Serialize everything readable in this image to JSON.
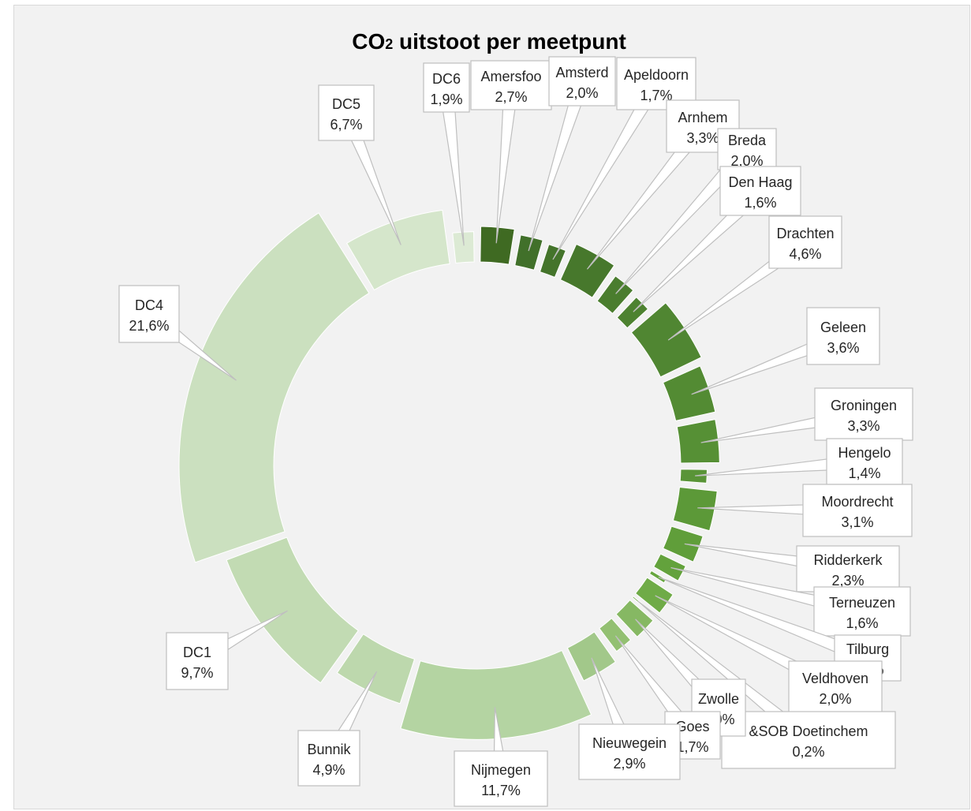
{
  "chart_data": {
    "type": "pie",
    "variant": "radial-column",
    "title": "CO₂ uitstoot per meetpunt",
    "title_main": "CO",
    "title_sub": "2",
    "title_rest": " uitstoot per meetpunt",
    "slices": [
      {
        "label": "Amersfoort",
        "display": "Amersfoo",
        "pct": "2,7%",
        "value": 2.7,
        "color": "#3f6a22"
      },
      {
        "label": "Amsterdam",
        "display": "Amsterd",
        "pct": "2,0%",
        "value": 2.0,
        "color": "#41702a"
      },
      {
        "label": "Apeldoorn",
        "display": "Apeldoorn",
        "pct": "1,7%",
        "value": 1.7,
        "color": "#44742b"
      },
      {
        "label": "Arnhem",
        "display": "Arnhem",
        "pct": "3,3%",
        "value": 3.3,
        "color": "#47782c"
      },
      {
        "label": "Breda",
        "display": "Breda",
        "pct": "2,0%",
        "value": 2.0,
        "color": "#4a7d2e"
      },
      {
        "label": "Den Haag",
        "display": "Den Haag",
        "pct": "1,6%",
        "value": 1.6,
        "color": "#4d8230"
      },
      {
        "label": "Drachten",
        "display": "Drachten",
        "pct": "4,6%",
        "value": 4.6,
        "color": "#508632"
      },
      {
        "label": "Geleen",
        "display": "Geleen",
        "pct": "3,6%",
        "value": 3.6,
        "color": "#538b33"
      },
      {
        "label": "Groningen",
        "display": "Groningen",
        "pct": "3,3%",
        "value": 3.3,
        "color": "#569035"
      },
      {
        "label": "Hengelo",
        "display": "Hengelo",
        "pct": "1,4%",
        "value": 1.4,
        "color": "#599437"
      },
      {
        "label": "Moordrecht",
        "display": "Moordrecht",
        "pct": "3,1%",
        "value": 3.1,
        "color": "#5c9938"
      },
      {
        "label": "Ridderkerk",
        "display": "Ridderkerk",
        "pct": "2,3%",
        "value": 2.3,
        "color": "#609e3a"
      },
      {
        "label": "Terneuzen",
        "display": "Terneuzen",
        "pct": "1,6%",
        "value": 1.6,
        "color": "#63a23c"
      },
      {
        "label": "Tilburg",
        "display": "Tilburg",
        "pct": "0,5%",
        "value": 0.5,
        "color": "#67a63f"
      },
      {
        "label": "Veldhoven",
        "display": "Veldhoven",
        "pct": "2,0%",
        "value": 2.0,
        "color": "#6fab47"
      },
      {
        "label": "SO&SOB Doetinchem",
        "display": "&SOB Doetinchem",
        "pct": "0,2%",
        "value": 0.2,
        "color": "#7ab155"
      },
      {
        "label": "Zwolle",
        "display": "Zwolle",
        "pct": "2,0%",
        "value": 2.0,
        "color": "#86b863"
      },
      {
        "label": "Goes",
        "display": "Goes",
        "pct": "1,7%",
        "value": 1.7,
        "color": "#93c072"
      },
      {
        "label": "Nieuwegein",
        "display": "Nieuwegein",
        "pct": "2,9%",
        "value": 2.9,
        "color": "#a2c88a"
      },
      {
        "label": "Nijmegen",
        "display": "Nijmegen",
        "pct": "11,7%",
        "value": 11.7,
        "color": "#b4d4a2"
      },
      {
        "label": "Bunnik",
        "display": "Bunnik",
        "pct": "4,9%",
        "value": 4.9,
        "color": "#bdd8ad"
      },
      {
        "label": "DC1",
        "display": "DC1",
        "pct": "9,7%",
        "value": 9.7,
        "color": "#c2dbb3"
      },
      {
        "label": "DC4",
        "display": "DC4",
        "pct": "21,6%",
        "value": 21.6,
        "color": "#cbe0bf"
      },
      {
        "label": "DC5",
        "display": "DC5",
        "pct": "6,7%",
        "value": 6.7,
        "color": "#d5e6cb"
      },
      {
        "label": "DC6",
        "display": "DC6",
        "pct": "1,9%",
        "value": 1.9,
        "color": "#dcead4"
      }
    ]
  }
}
